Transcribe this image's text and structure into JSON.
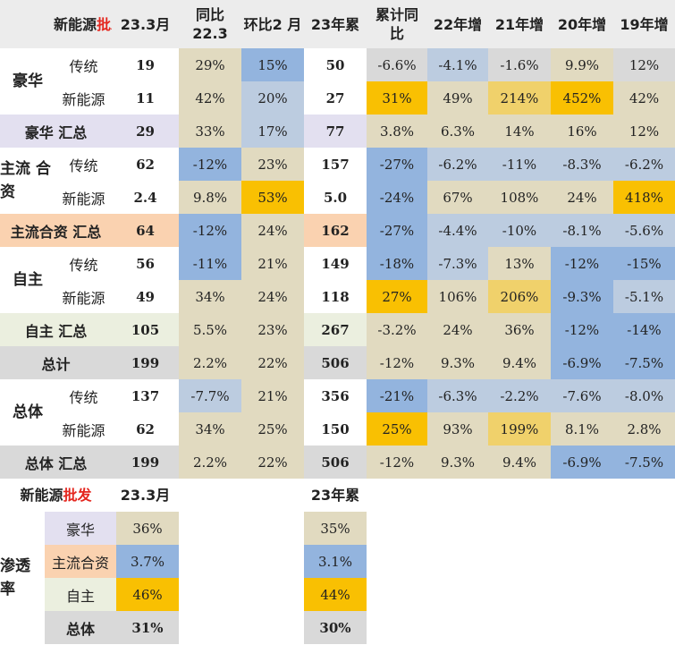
{
  "header": {
    "title_prefix": "新能源",
    "title_suffix": "批发",
    "columns": [
      "23.3月",
      "同比\n22.3",
      "环比2\n月",
      "23年累",
      "累计同\n比",
      "22年增",
      "21年增",
      "20年增",
      "19年增"
    ]
  },
  "rows": [
    {
      "label": "传统",
      "values": [
        "19",
        "29%",
        "15%",
        "50",
        "-6.6%",
        "-4.1%",
        "-1.6%",
        "9.9%",
        "12%"
      ]
    },
    {
      "label": "新能源",
      "values": [
        "11",
        "42%",
        "20%",
        "27",
        "31%",
        "49%",
        "214%",
        "452%",
        "42%"
      ]
    },
    {
      "label": "豪华  汇总",
      "values": [
        "29",
        "33%",
        "17%",
        "77",
        "3.8%",
        "6.3%",
        "14%",
        "16%",
        "12%"
      ]
    },
    {
      "label": "传统",
      "values": [
        "62",
        "-12%",
        "23%",
        "157",
        "-27%",
        "-6.2%",
        "-11%",
        "-8.3%",
        "-6.2%"
      ]
    },
    {
      "label": "新能源",
      "values": [
        "2.4",
        "9.8%",
        "53%",
        "5.0",
        "-24%",
        "67%",
        "108%",
        "24%",
        "418%"
      ]
    },
    {
      "label": "主流合资  汇总",
      "values": [
        "64",
        "-12%",
        "24%",
        "162",
        "-27%",
        "-4.4%",
        "-10%",
        "-8.1%",
        "-5.6%"
      ]
    },
    {
      "label": "传统",
      "values": [
        "56",
        "-11%",
        "21%",
        "149",
        "-18%",
        "-7.3%",
        "13%",
        "-12%",
        "-15%"
      ]
    },
    {
      "label": "新能源",
      "values": [
        "49",
        "34%",
        "24%",
        "118",
        "27%",
        "106%",
        "206%",
        "-9.3%",
        "-5.1%"
      ]
    },
    {
      "label": "自主  汇总",
      "values": [
        "105",
        "5.5%",
        "23%",
        "267",
        "-3.2%",
        "24%",
        "36%",
        "-12%",
        "-14%"
      ]
    },
    {
      "label": "总计",
      "values": [
        "199",
        "2.2%",
        "22%",
        "506",
        "-12%",
        "9.3%",
        "9.4%",
        "-6.9%",
        "-7.5%"
      ]
    },
    {
      "label": "传统",
      "values": [
        "137",
        "-7.7%",
        "21%",
        "356",
        "-21%",
        "-6.3%",
        "-2.2%",
        "-7.6%",
        "-8.0%"
      ]
    },
    {
      "label": "新能源",
      "values": [
        "62",
        "34%",
        "25%",
        "150",
        "25%",
        "93%",
        "199%",
        "8.1%",
        "2.8%"
      ]
    },
    {
      "label": "总体  汇总",
      "values": [
        "199",
        "2.2%",
        "22%",
        "506",
        "-12%",
        "9.3%",
        "9.4%",
        "-6.9%",
        "-7.5%"
      ]
    }
  ],
  "groups": [
    "豪华",
    "主流\n合资",
    "自主",
    "总体"
  ],
  "penetration": {
    "title_prefix": "新能源",
    "title_suffix": "批发",
    "col1": "23.3月",
    "col2": "23年累",
    "side_label": "渗透\n率",
    "rows": [
      {
        "label": "豪华",
        "v1": "36%",
        "v2": "35%"
      },
      {
        "label": "主流合资",
        "v1": "3.7%",
        "v2": "3.1%"
      },
      {
        "label": "自主",
        "v1": "46%",
        "v2": "44%"
      },
      {
        "label": "总体",
        "v1": "31%",
        "v2": "30%"
      }
    ]
  },
  "colors": {
    "header_bg": "#ececec",
    "beige": "#e1dac0",
    "blue": "#93b4de",
    "light_blue": "#bccce0",
    "gold": "#f9c002",
    "yellow": "#f0d16b",
    "gray": "#d9d9d9",
    "lavender": "#e3e0f0",
    "peach": "#fad2b0",
    "sage": "#ebefdf",
    "red": "#e4271f"
  }
}
